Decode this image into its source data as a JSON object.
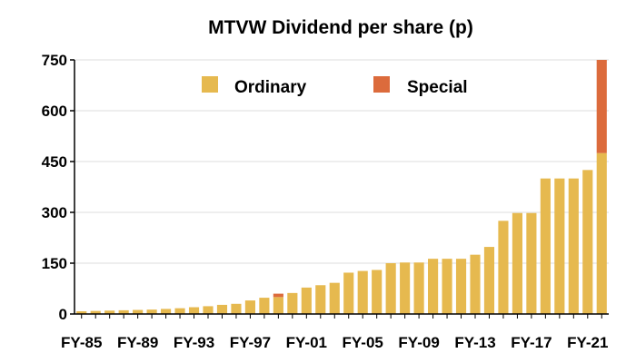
{
  "chart_data": {
    "type": "bar",
    "stacked": true,
    "title": "MTVW Dividend per share (p)",
    "xlabel": "",
    "ylabel": "",
    "ylim": [
      0,
      750
    ],
    "yticks": [
      0,
      150,
      300,
      450,
      600,
      750
    ],
    "grid": true,
    "legend_position": "top-center",
    "categories": [
      "FY-85",
      "FY-86",
      "FY-87",
      "FY-88",
      "FY-89",
      "FY-90",
      "FY-91",
      "FY-92",
      "FY-93",
      "FY-94",
      "FY-95",
      "FY-96",
      "FY-97",
      "FY-98",
      "FY-99",
      "FY-00",
      "FY-01",
      "FY-02",
      "FY-03",
      "FY-04",
      "FY-05",
      "FY-06",
      "FY-07",
      "FY-08",
      "FY-09",
      "FY-10",
      "FY-11",
      "FY-12",
      "FY-13",
      "FY-14",
      "FY-15",
      "FY-16",
      "FY-17",
      "FY-18",
      "FY-19",
      "FY-20",
      "FY-21",
      "FY-22"
    ],
    "xtick_labels": [
      "FY-85",
      "FY-89",
      "FY-93",
      "FY-97",
      "FY-01",
      "FY-05",
      "FY-09",
      "FY-13",
      "FY-17",
      "FY-21"
    ],
    "series": [
      {
        "name": "Ordinary",
        "color": "#E6B94F",
        "values": [
          8,
          9,
          10,
          11,
          12,
          13,
          15,
          17,
          20,
          23,
          27,
          30,
          40,
          48,
          50,
          62,
          78,
          85,
          92,
          122,
          127,
          130,
          150,
          152,
          152,
          163,
          163,
          163,
          175,
          198,
          275,
          298,
          298,
          400,
          400,
          400,
          425,
          475
        ]
      },
      {
        "name": "Special",
        "color": "#DC6B3C",
        "values": [
          0,
          0,
          0,
          0,
          0,
          0,
          0,
          0,
          0,
          0,
          0,
          0,
          0,
          0,
          10,
          0,
          0,
          0,
          0,
          0,
          0,
          0,
          0,
          0,
          0,
          0,
          0,
          0,
          0,
          0,
          0,
          0,
          0,
          0,
          0,
          0,
          0,
          275
        ]
      }
    ]
  }
}
